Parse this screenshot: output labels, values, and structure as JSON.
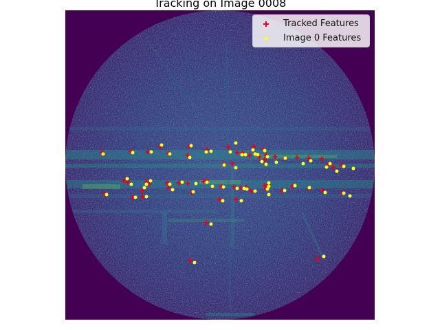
{
  "title": "Tracking on Image 0008",
  "legend": {
    "tracked_label": "Tracked Features",
    "image0_label": "Image 0 Features"
  },
  "colors": {
    "background": "#440154",
    "tracked": "#e8001a",
    "image0": "#ffff2a"
  },
  "chart_data": {
    "type": "scatter",
    "image_width": 450,
    "image_height": 450,
    "axes": "off",
    "legend_position": "top-right",
    "series": [
      {
        "name": "Tracked Features",
        "marker": "+",
        "color": "#e8001a",
        "points": [
          [
            53,
            206
          ],
          [
            95,
            205
          ],
          [
            120,
            206
          ],
          [
            138,
            198
          ],
          [
            150,
            208
          ],
          [
            180,
            198
          ],
          [
            178,
            211
          ],
          [
            206,
            203
          ],
          [
            237,
            199
          ],
          [
            250,
            207
          ],
          [
            258,
            207
          ],
          [
            274,
            198
          ],
          [
            288,
            202
          ],
          [
            292,
            211
          ],
          [
            243,
            223
          ],
          [
            231,
            224
          ],
          [
            268,
            211
          ],
          [
            282,
            213
          ],
          [
            290,
            217
          ],
          [
            305,
            213
          ],
          [
            320,
            215
          ],
          [
            337,
            214
          ],
          [
            354,
            215
          ],
          [
            373,
            216
          ],
          [
            382,
            225
          ],
          [
            390,
            228
          ],
          [
            402,
            225
          ],
          [
            85,
            248
          ],
          [
            91,
            250
          ],
          [
            118,
            249
          ],
          [
            122,
            253
          ],
          [
            111,
            262
          ],
          [
            148,
            251
          ],
          [
            150,
            258
          ],
          [
            165,
            251
          ],
          [
            178,
            252
          ],
          [
            184,
            265
          ],
          [
            201,
            249
          ],
          [
            205,
            248
          ],
          [
            227,
            256
          ],
          [
            245,
            257
          ],
          [
            255,
            258
          ],
          [
            263,
            257
          ],
          [
            270,
            263
          ],
          [
            292,
            260
          ],
          [
            290,
            255
          ],
          [
            295,
            254
          ],
          [
            315,
            263
          ],
          [
            330,
            256
          ],
          [
            355,
            259
          ],
          [
            374,
            262
          ],
          [
            403,
            265
          ],
          [
            57,
            267
          ],
          [
            98,
            272
          ],
          [
            112,
            271
          ],
          [
            224,
            275
          ],
          [
            248,
            275
          ],
          [
            205,
            309
          ],
          [
            182,
            364
          ],
          [
            367,
            362
          ]
        ]
      },
      {
        "name": "Image 0 Features",
        "marker": "o",
        "color": "#ffff2a",
        "points": [
          [
            55,
            209
          ],
          [
            98,
            207
          ],
          [
            125,
            206
          ],
          [
            140,
            196
          ],
          [
            152,
            209
          ],
          [
            183,
            197
          ],
          [
            181,
            214
          ],
          [
            205,
            206
          ],
          [
            212,
            205
          ],
          [
            240,
            206
          ],
          [
            248,
            193
          ],
          [
            257,
            210
          ],
          [
            262,
            210
          ],
          [
            273,
            203
          ],
          [
            276,
            209
          ],
          [
            290,
            204
          ],
          [
            294,
            213
          ],
          [
            248,
            229
          ],
          [
            231,
            225
          ],
          [
            280,
            210
          ],
          [
            286,
            220
          ],
          [
            292,
            224
          ],
          [
            307,
            221
          ],
          [
            320,
            215
          ],
          [
            346,
            223
          ],
          [
            357,
            219
          ],
          [
            380,
            228
          ],
          [
            385,
            223
          ],
          [
            395,
            234
          ],
          [
            405,
            227
          ],
          [
            419,
            230
          ],
          [
            90,
            245
          ],
          [
            96,
            253
          ],
          [
            118,
            253
          ],
          [
            124,
            248
          ],
          [
            115,
            258
          ],
          [
            152,
            253
          ],
          [
            156,
            261
          ],
          [
            170,
            250
          ],
          [
            190,
            252
          ],
          [
            186,
            264
          ],
          [
            206,
            250
          ],
          [
            214,
            256
          ],
          [
            230,
            257
          ],
          [
            250,
            259
          ],
          [
            260,
            259
          ],
          [
            264,
            260
          ],
          [
            276,
            263
          ],
          [
            296,
            256
          ],
          [
            296,
            268
          ],
          [
            319,
            262
          ],
          [
            334,
            255
          ],
          [
            355,
            258
          ],
          [
            378,
            265
          ],
          [
            405,
            266
          ],
          [
            414,
            270
          ],
          [
            60,
            268
          ],
          [
            102,
            272
          ],
          [
            118,
            271
          ],
          [
            229,
            277
          ],
          [
            256,
            277
          ],
          [
            212,
            311
          ],
          [
            188,
            367
          ],
          [
            376,
            358
          ],
          [
            296,
            251
          ],
          [
            294,
            260
          ]
        ]
      }
    ]
  }
}
